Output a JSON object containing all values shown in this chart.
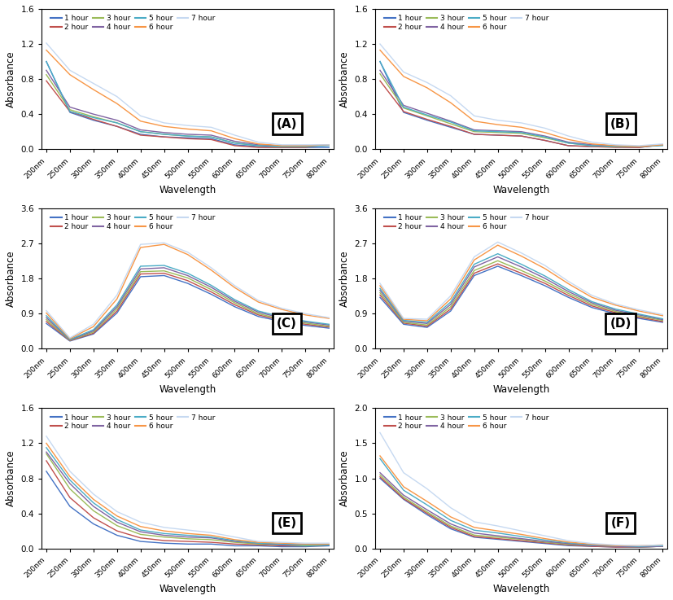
{
  "wavelengths": [
    200,
    250,
    300,
    350,
    400,
    450,
    500,
    550,
    600,
    650,
    700,
    750,
    800
  ],
  "tick_labels": [
    "200nm",
    "250nm",
    "300nm",
    "350nm",
    "400nm",
    "450nm",
    "500nm",
    "550nm",
    "600nm",
    "650nm",
    "700nm",
    "750nm",
    "800nm"
  ],
  "hours": [
    "1 hour",
    "2 hour",
    "3 hour",
    "4 hour",
    "5 hour",
    "6 hour",
    "7 hour"
  ],
  "colors": [
    "#4472C4",
    "#C0504D",
    "#9BBB59",
    "#8064A2",
    "#4BACC6",
    "#F79646",
    "#C6D9F1"
  ],
  "panel_labels": [
    "(A)",
    "(B)",
    "(C)",
    "(D)",
    "(E)",
    "(F)"
  ],
  "panels": {
    "A": {
      "ylim": [
        0,
        1.6
      ],
      "yticks": [
        0,
        0.4,
        0.8,
        1.2,
        1.6
      ],
      "data": [
        [
          1.0,
          0.42,
          0.33,
          0.26,
          0.17,
          0.14,
          0.13,
          0.12,
          0.05,
          0.03,
          0.02,
          0.02,
          0.02
        ],
        [
          0.78,
          0.43,
          0.34,
          0.26,
          0.16,
          0.14,
          0.12,
          0.11,
          0.04,
          0.02,
          0.02,
          0.02,
          0.05
        ],
        [
          0.85,
          0.45,
          0.37,
          0.3,
          0.2,
          0.17,
          0.15,
          0.14,
          0.07,
          0.04,
          0.03,
          0.03,
          0.05
        ],
        [
          0.9,
          0.48,
          0.4,
          0.33,
          0.22,
          0.19,
          0.17,
          0.16,
          0.09,
          0.05,
          0.04,
          0.04,
          0.05
        ],
        [
          1.0,
          0.43,
          0.36,
          0.3,
          0.2,
          0.17,
          0.15,
          0.14,
          0.07,
          0.04,
          0.03,
          0.03,
          0.04
        ],
        [
          1.13,
          0.85,
          0.68,
          0.52,
          0.32,
          0.26,
          0.23,
          0.21,
          0.12,
          0.06,
          0.04,
          0.04,
          0.05
        ],
        [
          1.21,
          0.9,
          0.75,
          0.6,
          0.38,
          0.3,
          0.27,
          0.25,
          0.16,
          0.08,
          0.05,
          0.05,
          0.05
        ]
      ]
    },
    "B": {
      "ylim": [
        0,
        1.6
      ],
      "yticks": [
        0,
        0.4,
        0.8,
        1.2,
        1.6
      ],
      "data": [
        [
          1.0,
          0.42,
          0.33,
          0.25,
          0.17,
          0.16,
          0.15,
          0.1,
          0.04,
          0.03,
          0.03,
          0.02,
          0.05
        ],
        [
          0.78,
          0.43,
          0.34,
          0.26,
          0.17,
          0.16,
          0.15,
          0.1,
          0.04,
          0.03,
          0.02,
          0.02,
          0.05
        ],
        [
          0.86,
          0.47,
          0.38,
          0.29,
          0.2,
          0.19,
          0.18,
          0.13,
          0.07,
          0.04,
          0.03,
          0.03,
          0.05
        ],
        [
          0.9,
          0.5,
          0.41,
          0.32,
          0.22,
          0.21,
          0.2,
          0.15,
          0.08,
          0.05,
          0.04,
          0.03,
          0.05
        ],
        [
          1.0,
          0.48,
          0.39,
          0.31,
          0.21,
          0.2,
          0.19,
          0.14,
          0.07,
          0.04,
          0.03,
          0.03,
          0.04
        ],
        [
          1.13,
          0.83,
          0.7,
          0.53,
          0.32,
          0.28,
          0.25,
          0.19,
          0.11,
          0.06,
          0.04,
          0.03,
          0.05
        ],
        [
          1.2,
          0.88,
          0.76,
          0.61,
          0.38,
          0.33,
          0.3,
          0.24,
          0.15,
          0.08,
          0.05,
          0.04,
          0.06
        ]
      ]
    },
    "C": {
      "ylim": [
        0,
        3.6
      ],
      "yticks": [
        0,
        0.9,
        1.8,
        2.7,
        3.6
      ],
      "data": [
        [
          0.65,
          0.2,
          0.38,
          0.92,
          1.85,
          1.88,
          1.68,
          1.4,
          1.08,
          0.83,
          0.7,
          0.6,
          0.53
        ],
        [
          0.7,
          0.21,
          0.4,
          0.97,
          1.92,
          1.94,
          1.75,
          1.46,
          1.13,
          0.87,
          0.73,
          0.63,
          0.56
        ],
        [
          0.75,
          0.22,
          0.43,
          1.03,
          1.98,
          2.0,
          1.82,
          1.52,
          1.18,
          0.9,
          0.76,
          0.66,
          0.58
        ],
        [
          0.8,
          0.23,
          0.46,
          1.08,
          2.05,
          2.08,
          1.88,
          1.58,
          1.22,
          0.94,
          0.79,
          0.69,
          0.61
        ],
        [
          0.85,
          0.24,
          0.49,
          1.13,
          2.12,
          2.14,
          1.94,
          1.63,
          1.26,
          0.97,
          0.82,
          0.71,
          0.63
        ],
        [
          0.92,
          0.26,
          0.57,
          1.28,
          2.6,
          2.68,
          2.42,
          2.02,
          1.57,
          1.2,
          1.01,
          0.87,
          0.78
        ],
        [
          0.98,
          0.28,
          0.63,
          1.38,
          2.68,
          2.72,
          2.48,
          2.08,
          1.62,
          1.24,
          1.04,
          0.9,
          0.8
        ]
      ]
    },
    "D": {
      "ylim": [
        0,
        3.6
      ],
      "yticks": [
        0,
        0.9,
        1.8,
        2.7,
        3.6
      ],
      "data": [
        [
          1.32,
          0.63,
          0.55,
          0.97,
          1.88,
          2.12,
          1.88,
          1.62,
          1.32,
          1.06,
          0.9,
          0.78,
          0.68
        ],
        [
          1.38,
          0.66,
          0.58,
          1.02,
          1.94,
          2.18,
          1.94,
          1.68,
          1.37,
          1.1,
          0.93,
          0.81,
          0.7
        ],
        [
          1.44,
          0.68,
          0.61,
          1.08,
          2.01,
          2.26,
          2.01,
          1.74,
          1.42,
          1.14,
          0.96,
          0.84,
          0.73
        ],
        [
          1.5,
          0.71,
          0.65,
          1.14,
          2.1,
          2.36,
          2.1,
          1.81,
          1.47,
          1.18,
          0.99,
          0.87,
          0.75
        ],
        [
          1.55,
          0.73,
          0.68,
          1.2,
          2.17,
          2.44,
          2.17,
          1.87,
          1.52,
          1.21,
          1.02,
          0.89,
          0.77
        ],
        [
          1.62,
          0.76,
          0.72,
          1.28,
          2.28,
          2.66,
          2.38,
          2.06,
          1.67,
          1.32,
          1.12,
          0.97,
          0.85
        ],
        [
          1.68,
          0.78,
          0.76,
          1.36,
          2.36,
          2.74,
          2.46,
          2.14,
          1.73,
          1.37,
          1.15,
          1.0,
          0.88
        ]
      ]
    },
    "E": {
      "ylim": [
        0,
        1.6
      ],
      "yticks": [
        0,
        0.4,
        0.8,
        1.2,
        1.6
      ],
      "data": [
        [
          0.88,
          0.48,
          0.28,
          0.15,
          0.08,
          0.06,
          0.05,
          0.05,
          0.03,
          0.03,
          0.02,
          0.02,
          0.03
        ],
        [
          1.0,
          0.58,
          0.35,
          0.2,
          0.12,
          0.09,
          0.08,
          0.07,
          0.05,
          0.04,
          0.03,
          0.03,
          0.04
        ],
        [
          1.08,
          0.68,
          0.43,
          0.26,
          0.16,
          0.13,
          0.11,
          0.1,
          0.07,
          0.05,
          0.04,
          0.03,
          0.04
        ],
        [
          1.1,
          0.74,
          0.48,
          0.3,
          0.19,
          0.15,
          0.13,
          0.12,
          0.08,
          0.06,
          0.04,
          0.04,
          0.04
        ],
        [
          1.15,
          0.78,
          0.52,
          0.33,
          0.21,
          0.17,
          0.15,
          0.13,
          0.09,
          0.06,
          0.05,
          0.04,
          0.04
        ],
        [
          1.2,
          0.82,
          0.56,
          0.37,
          0.25,
          0.2,
          0.17,
          0.15,
          0.1,
          0.07,
          0.06,
          0.05,
          0.05
        ],
        [
          1.28,
          0.88,
          0.62,
          0.42,
          0.3,
          0.24,
          0.21,
          0.18,
          0.13,
          0.08,
          0.07,
          0.06,
          0.06
        ]
      ]
    },
    "F": {
      "ylim": [
        0,
        2.0
      ],
      "yticks": [
        0.0,
        0.5,
        1.0,
        1.5,
        2.0
      ],
      "data": [
        [
          1.0,
          0.7,
          0.48,
          0.28,
          0.16,
          0.13,
          0.1,
          0.07,
          0.04,
          0.03,
          0.02,
          0.02,
          0.03
        ],
        [
          1.02,
          0.71,
          0.5,
          0.3,
          0.17,
          0.14,
          0.11,
          0.08,
          0.05,
          0.03,
          0.02,
          0.02,
          0.03
        ],
        [
          1.05,
          0.73,
          0.52,
          0.32,
          0.19,
          0.16,
          0.13,
          0.09,
          0.06,
          0.04,
          0.03,
          0.02,
          0.03
        ],
        [
          1.08,
          0.76,
          0.55,
          0.35,
          0.22,
          0.18,
          0.14,
          0.1,
          0.07,
          0.04,
          0.03,
          0.02,
          0.03
        ],
        [
          1.28,
          0.83,
          0.62,
          0.4,
          0.26,
          0.22,
          0.17,
          0.12,
          0.08,
          0.05,
          0.04,
          0.03,
          0.04
        ],
        [
          1.32,
          0.88,
          0.67,
          0.45,
          0.3,
          0.25,
          0.2,
          0.14,
          0.09,
          0.06,
          0.04,
          0.04,
          0.05
        ],
        [
          1.65,
          1.08,
          0.85,
          0.58,
          0.38,
          0.32,
          0.25,
          0.18,
          0.11,
          0.07,
          0.05,
          0.04,
          0.05
        ]
      ]
    }
  }
}
